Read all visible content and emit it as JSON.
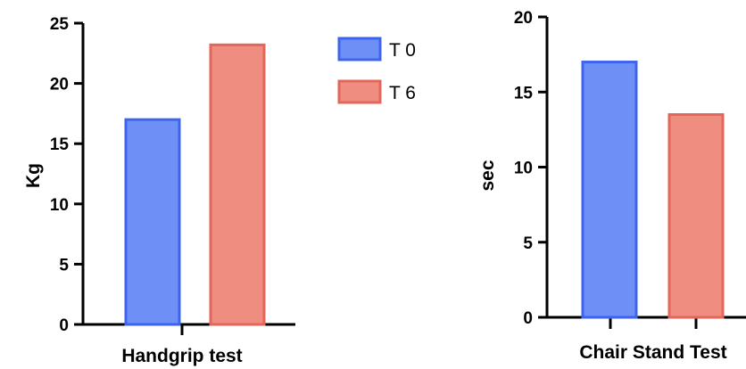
{
  "colors": {
    "t0_fill": "#6e8ff5",
    "t0_stroke": "#3d64ee",
    "t6_fill": "#ef8d80",
    "t6_stroke": "#e4665a"
  },
  "legend": {
    "items": [
      {
        "label": "T 0",
        "fill": "#6e8ff5",
        "stroke": "#3d64ee"
      },
      {
        "label": "T 6",
        "fill": "#ef8d80",
        "stroke": "#e4665a"
      }
    ],
    "placement": "between-charts-top"
  },
  "chart_data": [
    {
      "type": "bar",
      "categories": [
        "Handgrip test"
      ],
      "series": [
        {
          "name": "T 0",
          "values": [
            17
          ]
        },
        {
          "name": "T 6",
          "values": [
            23.2
          ]
        }
      ],
      "ylabel": "Kg",
      "ylim": [
        0,
        25
      ],
      "yticks": [
        "0",
        "5",
        "10",
        "15",
        "20",
        "25"
      ],
      "grid": false
    },
    {
      "type": "bar",
      "categories": [
        "Chair Stand Test"
      ],
      "series": [
        {
          "name": "T 0",
          "values": [
            17
          ]
        },
        {
          "name": "T 6",
          "values": [
            13.5
          ]
        }
      ],
      "ylabel": "sec",
      "ylim": [
        0,
        20
      ],
      "yticks": [
        "0",
        "5",
        "10",
        "15",
        "20"
      ],
      "grid": false
    }
  ]
}
